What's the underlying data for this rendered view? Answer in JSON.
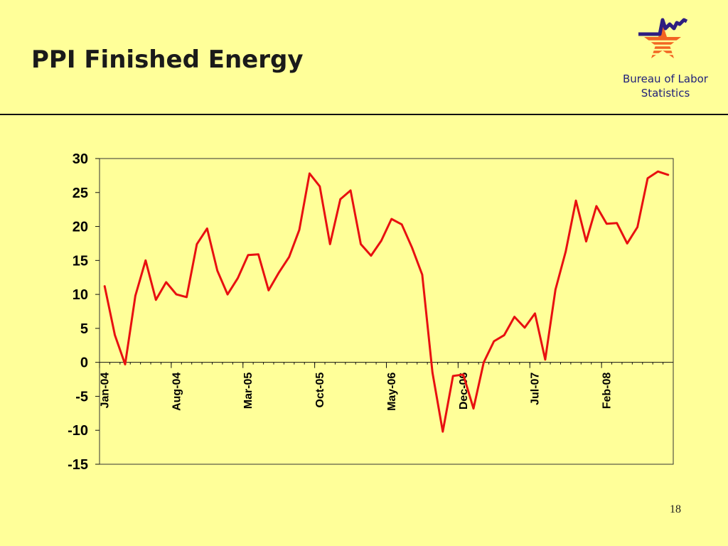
{
  "slide": {
    "title": "PPI Finished Energy",
    "org_name_line1": "Bureau of Labor",
    "org_name_line2": "Statistics",
    "page_number": "18"
  },
  "colors": {
    "background": "#ffff99",
    "line": "#e81010",
    "logo_star": "#f26522",
    "logo_line": "#2e1e80"
  },
  "chart_data": {
    "type": "line",
    "title": "",
    "xlabel": "",
    "ylabel": "",
    "ylim": [
      -15,
      30
    ],
    "yticks": [
      30,
      25,
      20,
      15,
      10,
      5,
      0,
      -5,
      -10,
      -15
    ],
    "x_tick_labels": [
      "Jan-04",
      "Aug-04",
      "Mar-05",
      "Oct-05",
      "May-06",
      "Dec-06",
      "Jul-07",
      "Feb-08"
    ],
    "x_tick_every": 7,
    "grid": false,
    "legend": "none",
    "series": [
      {
        "values": [
          11.2,
          4.0,
          -0.3,
          9.8,
          15.0,
          9.2,
          11.8,
          10.0,
          9.6,
          17.4,
          19.7,
          13.5,
          10.0,
          12.4,
          15.8,
          15.9,
          10.6,
          13.2,
          15.5,
          19.5,
          27.8,
          25.9,
          17.4,
          24.0,
          25.3,
          17.4,
          15.7,
          17.9,
          21.1,
          20.3,
          16.9,
          12.9,
          -1.5,
          -10.2,
          -2.0,
          -1.8,
          -6.8,
          0.0,
          3.1,
          4.0,
          6.7,
          5.1,
          7.2,
          0.4,
          10.7,
          16.3,
          23.8,
          17.8,
          23.0,
          20.4,
          20.5,
          17.5,
          19.9,
          27.1,
          28.1,
          27.6
        ]
      }
    ]
  }
}
